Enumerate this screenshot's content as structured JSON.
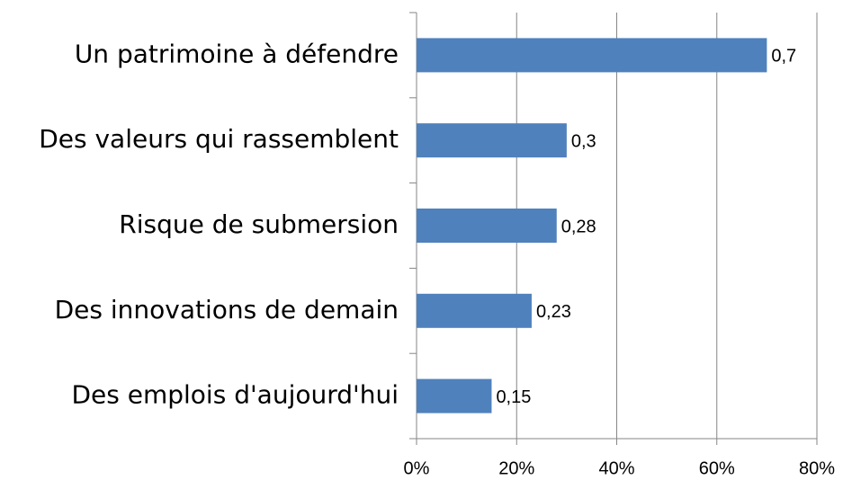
{
  "chart_data": {
    "type": "barh",
    "categories": [
      "Un patrimoine à défendre",
      "Des valeurs qui rassemblent",
      "Risque de submersion",
      "Des innovations de demain",
      "Des emplois d'aujourd'hui"
    ],
    "values": [
      70,
      30,
      28,
      23,
      15
    ],
    "value_labels": [
      "0,7",
      "0,3",
      "0,28",
      "0,23",
      "0,15"
    ],
    "color": "#4f81bd",
    "xlim": [
      0,
      80
    ],
    "xticks": [
      {
        "value": 0,
        "label": "0%"
      },
      {
        "value": 20,
        "label": "20%"
      },
      {
        "value": 40,
        "label": "40%"
      },
      {
        "value": 60,
        "label": "60%"
      },
      {
        "value": 80,
        "label": "80%"
      }
    ],
    "grid": true
  }
}
